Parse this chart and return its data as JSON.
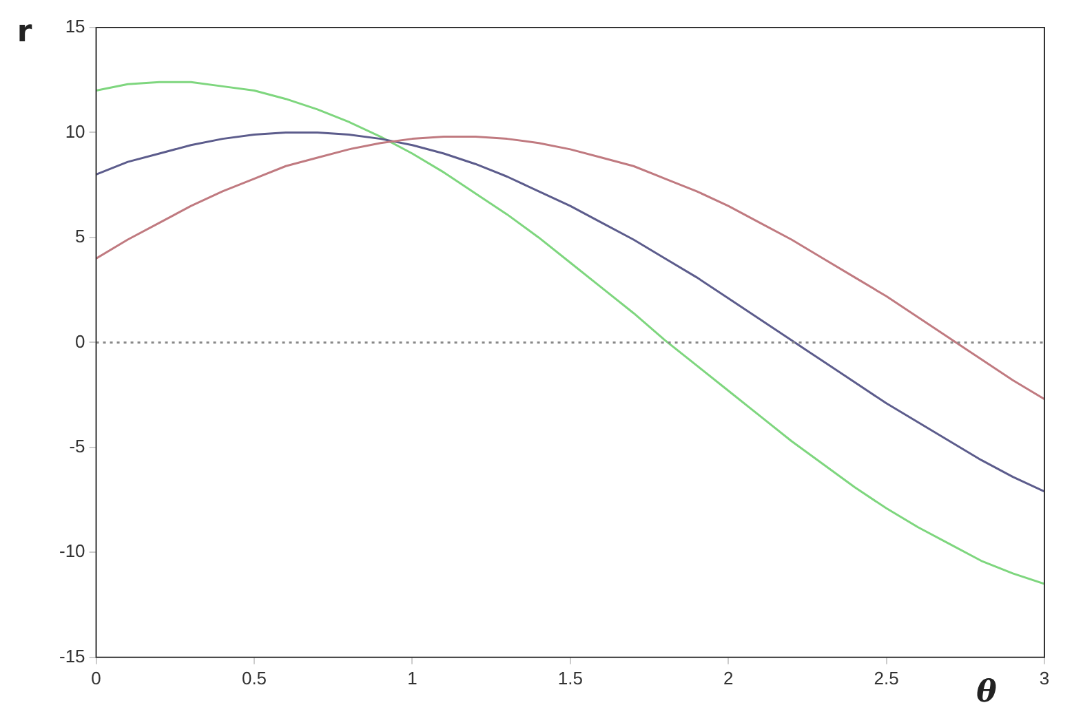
{
  "chart_data": {
    "type": "line",
    "xlabel": "θ",
    "ylabel": "r",
    "xlim": [
      0,
      3
    ],
    "xticks": [
      0,
      0.5,
      1,
      1.5,
      2,
      2.5,
      3
    ],
    "ylim": [
      -15,
      15
    ],
    "yticks": [
      -15,
      -10,
      -5,
      0,
      5,
      10,
      15
    ],
    "grid": false,
    "legend": false,
    "marker": "none",
    "line_style": "solid",
    "x": [
      0,
      0.1,
      0.2,
      0.3,
      0.4,
      0.5,
      0.6,
      0.7,
      0.8,
      0.9,
      1,
      1.1,
      1.2,
      1.3,
      1.4,
      1.5,
      1.6,
      1.7,
      1.8,
      1.9,
      2,
      2.1,
      2.2,
      2.3,
      2.4,
      2.5,
      2.6,
      2.7,
      2.8,
      2.9,
      3
    ],
    "series": [
      {
        "color": "#c07a80",
        "values": [
          4.0,
          4.9,
          5.7,
          6.5,
          7.2,
          7.8,
          8.4,
          8.8,
          9.2,
          9.5,
          9.7,
          9.8,
          9.8,
          9.7,
          9.5,
          9.2,
          8.8,
          8.4,
          7.8,
          7.2,
          6.5,
          5.7,
          4.9,
          4.0,
          3.1,
          2.2,
          1.2,
          0.2,
          -0.8,
          -1.8,
          -2.7
        ]
      },
      {
        "color": "#5c5c8c",
        "values": [
          8.0,
          8.6,
          9.0,
          9.4,
          9.7,
          9.9,
          10.0,
          10.0,
          9.9,
          9.7,
          9.4,
          9.0,
          8.5,
          7.9,
          7.2,
          6.5,
          5.7,
          4.9,
          4.0,
          3.1,
          2.1,
          1.1,
          0.1,
          -0.9,
          -1.9,
          -2.9,
          -3.8,
          -4.7,
          -5.6,
          -6.4,
          -7.1
        ]
      },
      {
        "color": "#7ed67e",
        "values": [
          12.0,
          12.3,
          12.4,
          12.4,
          12.2,
          12.0,
          11.6,
          11.1,
          10.5,
          9.8,
          9.0,
          8.1,
          7.1,
          6.1,
          5.0,
          3.8,
          2.6,
          1.4,
          0.1,
          -1.1,
          -2.3,
          -3.5,
          -4.7,
          -5.8,
          -6.9,
          -7.9,
          -8.8,
          -9.6,
          -10.4,
          -11.0,
          -11.5
        ]
      }
    ],
    "ref_lines": [
      {
        "axis": "y",
        "value": 0,
        "color": "#888888",
        "line_style": "dotted"
      }
    ]
  }
}
